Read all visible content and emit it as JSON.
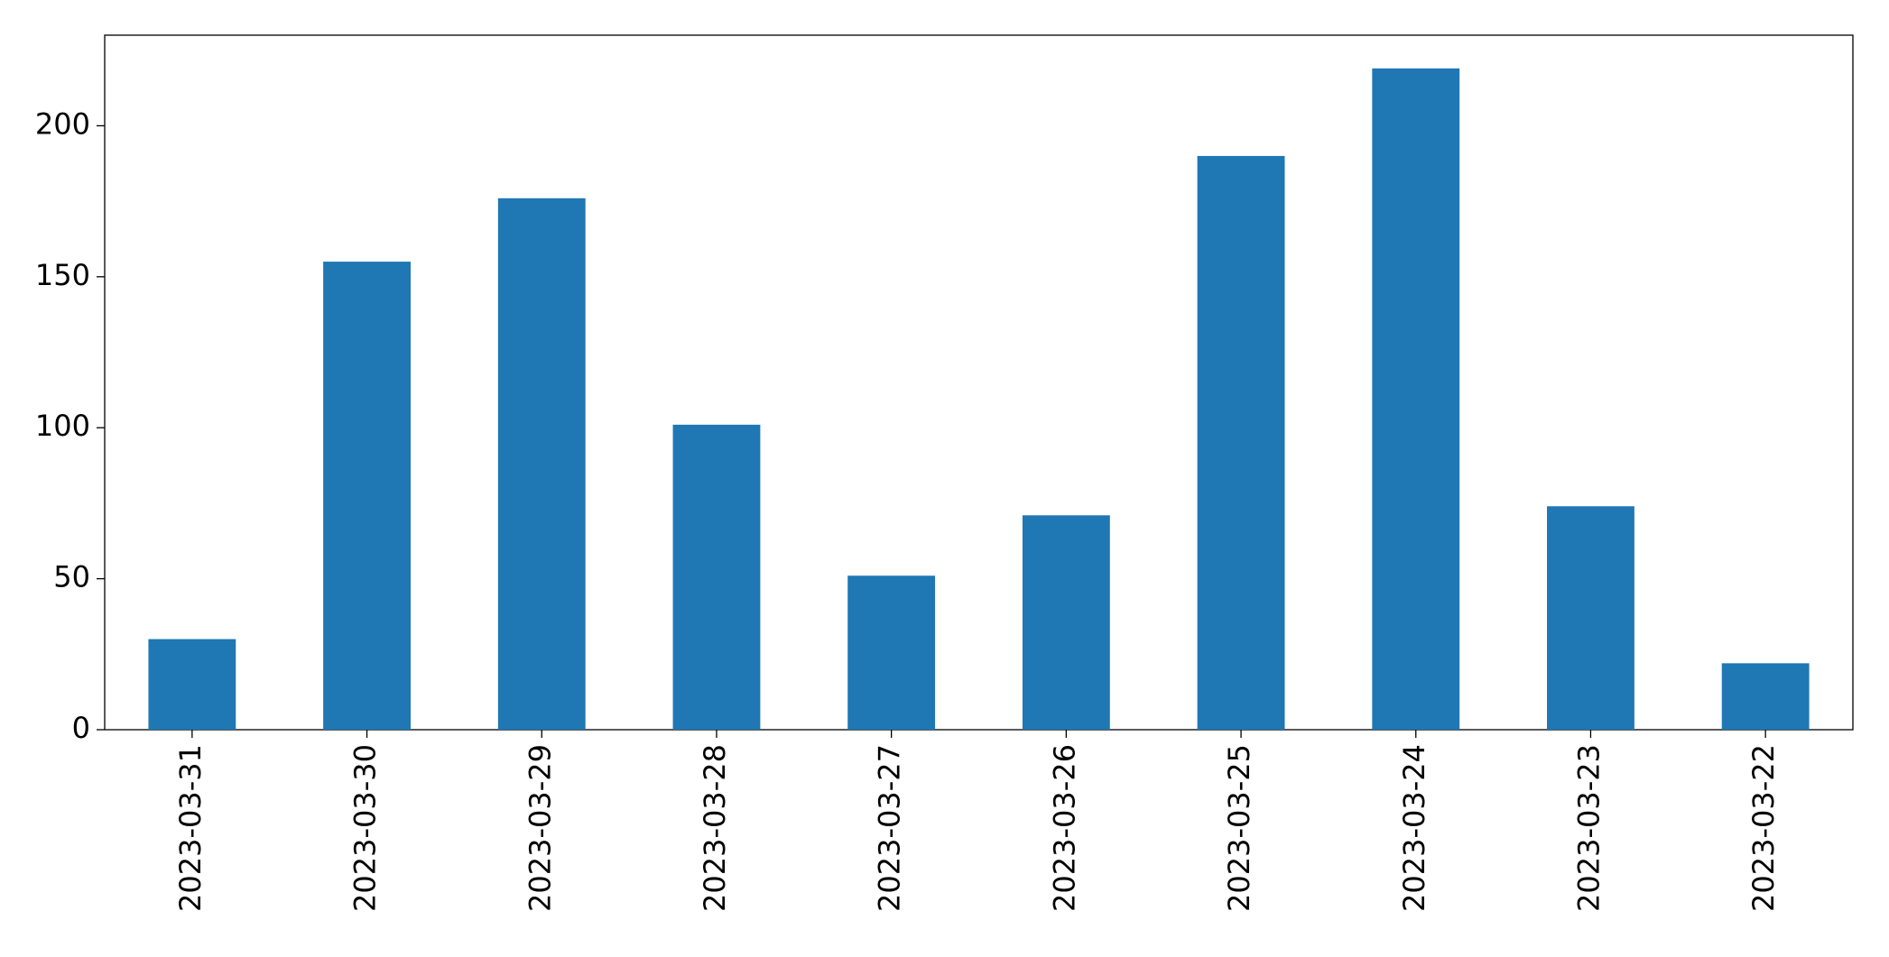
{
  "chart_data": {
    "type": "bar",
    "categories": [
      "2023-03-31",
      "2023-03-30",
      "2023-03-29",
      "2023-03-28",
      "2023-03-27",
      "2023-03-26",
      "2023-03-25",
      "2023-03-24",
      "2023-03-23",
      "2023-03-22"
    ],
    "values": [
      30,
      155,
      176,
      101,
      51,
      71,
      190,
      219,
      74,
      22
    ],
    "color": "#1f77b4",
    "ylim": [
      0,
      230
    ],
    "yticks": [
      0,
      50,
      100,
      150,
      200
    ],
    "grid": false
  }
}
